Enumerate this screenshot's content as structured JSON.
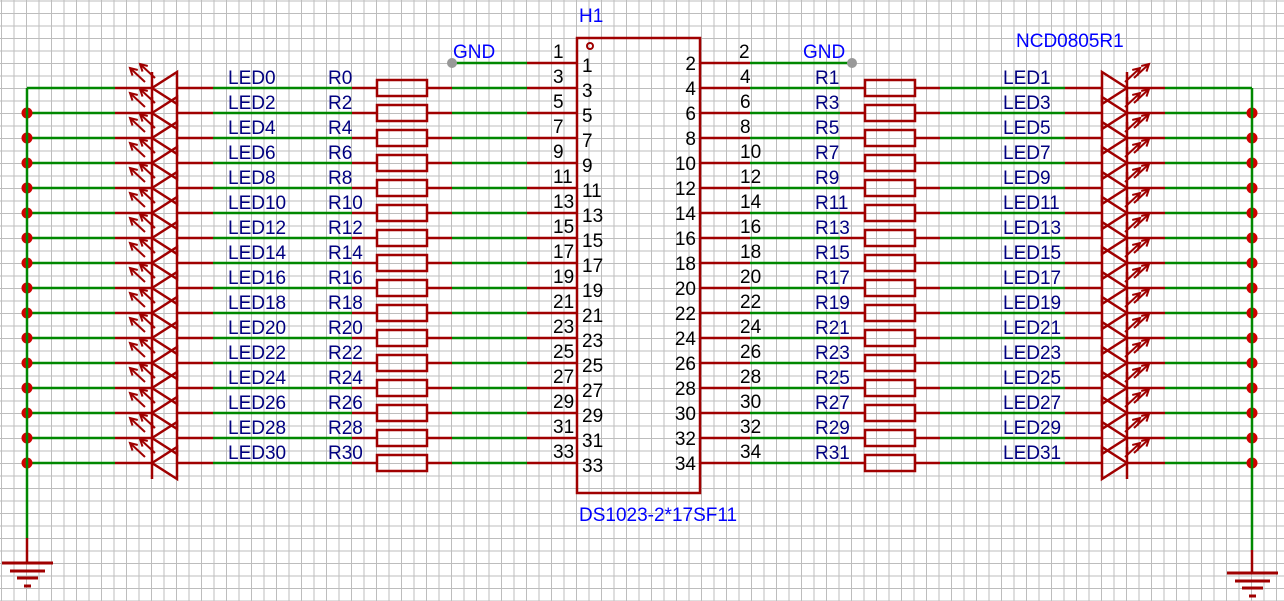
{
  "colors": {
    "wire": "#008800",
    "part": "#a00000",
    "net_label": "#000080",
    "designator": "#0000ff",
    "grid": "#bdbdbd"
  },
  "connector": {
    "designator": "H1",
    "value": "DS1023-2*17SF11"
  },
  "led_part": {
    "value": "NCD0805R1"
  },
  "gnd_label": "GND",
  "left": {
    "pins": [
      "3",
      "5",
      "7",
      "9",
      "11",
      "13",
      "15",
      "17",
      "19",
      "21",
      "23",
      "25",
      "27",
      "29",
      "31",
      "33"
    ],
    "resistors": [
      "R0",
      "R2",
      "R4",
      "R6",
      "R8",
      "R10",
      "R12",
      "R14",
      "R16",
      "R18",
      "R20",
      "R22",
      "R24",
      "R26",
      "R28",
      "R30"
    ],
    "leds": [
      "LED0",
      "LED2",
      "LED4",
      "LED6",
      "LED8",
      "LED10",
      "LED12",
      "LED14",
      "LED16",
      "LED18",
      "LED20",
      "LED22",
      "LED24",
      "LED26",
      "LED28",
      "LED30"
    ],
    "gnd_pin": "1"
  },
  "right": {
    "pins": [
      "4",
      "6",
      "8",
      "10",
      "12",
      "14",
      "16",
      "18",
      "20",
      "22",
      "24",
      "26",
      "28",
      "30",
      "32",
      "34"
    ],
    "resistors": [
      "R1",
      "R3",
      "R5",
      "R7",
      "R9",
      "R11",
      "R13",
      "R15",
      "R17",
      "R19",
      "R21",
      "R23",
      "R25",
      "R27",
      "R29",
      "R31"
    ],
    "leds": [
      "LED1",
      "LED3",
      "LED5",
      "LED7",
      "LED9",
      "LED11",
      "LED13",
      "LED15",
      "LED17",
      "LED19",
      "LED21",
      "LED23",
      "LED25",
      "LED27",
      "LED29",
      "LED31"
    ],
    "gnd_pin": "2"
  }
}
